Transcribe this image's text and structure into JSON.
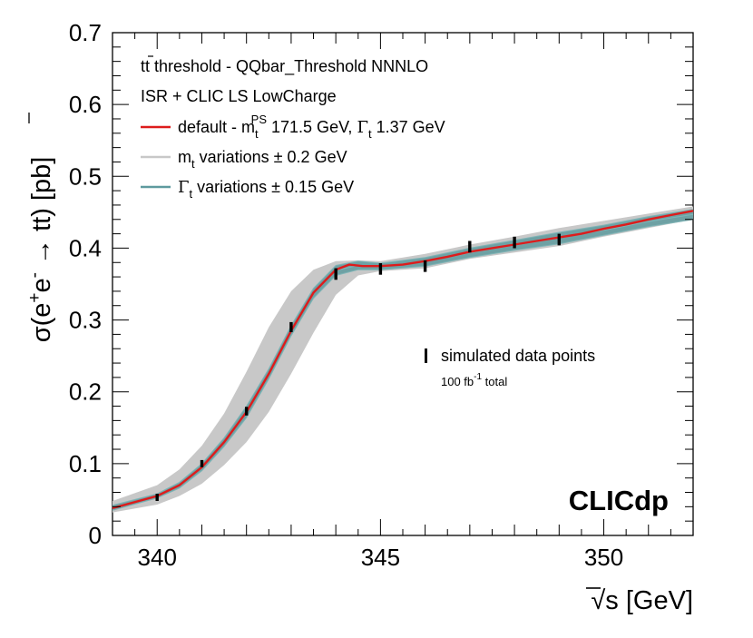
{
  "chart_data": {
    "type": "line",
    "title": "",
    "brand_label": "CLICdp",
    "xlabel": "s [GeV]",
    "xlabel_sqrt": "√",
    "ylabel_parts": {
      "pre": "σ(e",
      "sup1": "+",
      "mid": "e",
      "sup2": "-",
      "arrow": " → ",
      "tt": "tt",
      "post": ") [pb]"
    },
    "xlim": [
      339,
      352
    ],
    "ylim": [
      0,
      0.7
    ],
    "x_ticks": [
      340,
      345,
      350
    ],
    "x_tick_labels": [
      "340",
      "345",
      "350"
    ],
    "y_ticks": [
      0,
      0.1,
      0.2,
      0.3,
      0.4,
      0.5,
      0.6,
      0.7
    ],
    "y_tick_labels": [
      "0",
      "0.1",
      "0.2",
      "0.3",
      "0.4",
      "0.5",
      "0.6",
      "0.7"
    ],
    "legend": {
      "header1": "tt threshold - QQbar_Threshold NNNLO",
      "header2": "ISR + CLIC LS LowCharge",
      "entries": [
        {
          "name": "default",
          "text": "default - m",
          "sub": "t",
          "sup": "PS",
          "rest": " 171.5 GeV, ",
          "greek": "Γ",
          "sub2": "t",
          "rest2": " 1.37 GeV",
          "color": "#dd1c1c"
        },
        {
          "name": "mt-variations",
          "text": "m",
          "sub": "t",
          "rest": " variations ± 0.2 GeV",
          "color": "#c8c8c8"
        },
        {
          "name": "width-variations",
          "greek": "Γ",
          "sub": "t",
          "rest": " variations ± 0.15 GeV",
          "color": "#5e9a9e"
        }
      ]
    },
    "data_legend": {
      "label": "simulated data points",
      "lumi_pre": "100 fb",
      "lumi_sup": "-1",
      "lumi_post": " total"
    },
    "series": [
      {
        "name": "default",
        "color": "#dd1c1c",
        "x": [
          339.0,
          340.0,
          340.5,
          341.0,
          341.5,
          342.0,
          342.5,
          343.0,
          343.5,
          344.0,
          344.3,
          344.6,
          345.0,
          345.5,
          346.0,
          346.5,
          347.0,
          347.5,
          348.0,
          348.5,
          349.0,
          349.5,
          350.0,
          350.5,
          351.0,
          351.5,
          352.0
        ],
        "values": [
          0.038,
          0.055,
          0.07,
          0.095,
          0.13,
          0.172,
          0.225,
          0.285,
          0.338,
          0.37,
          0.377,
          0.375,
          0.375,
          0.377,
          0.382,
          0.388,
          0.395,
          0.4,
          0.405,
          0.41,
          0.415,
          0.42,
          0.427,
          0.433,
          0.44,
          0.446,
          0.452
        ]
      }
    ],
    "mt_band": {
      "color": "#c8c8c8",
      "x": [
        339.0,
        340.0,
        340.5,
        341.0,
        341.5,
        342.0,
        342.5,
        343.0,
        343.5,
        344.0,
        344.5,
        345.0,
        346.0,
        347.0,
        348.0,
        349.0,
        350.0,
        351.0,
        352.0
      ],
      "upper": [
        0.048,
        0.07,
        0.092,
        0.125,
        0.17,
        0.228,
        0.29,
        0.34,
        0.37,
        0.382,
        0.383,
        0.382,
        0.392,
        0.405,
        0.416,
        0.428,
        0.438,
        0.448,
        0.458
      ],
      "lower": [
        0.032,
        0.043,
        0.055,
        0.072,
        0.098,
        0.13,
        0.172,
        0.225,
        0.282,
        0.335,
        0.362,
        0.368,
        0.372,
        0.385,
        0.394,
        0.403,
        0.416,
        0.428,
        0.44
      ]
    },
    "width_band": {
      "color": "#5e9a9e",
      "x": [
        339.0,
        340.0,
        340.5,
        341.0,
        341.5,
        342.0,
        342.5,
        343.0,
        343.5,
        344.0,
        344.5,
        345.0,
        346.0,
        347.0,
        348.0,
        349.0,
        350.0,
        351.0,
        352.0
      ],
      "upper": [
        0.042,
        0.058,
        0.074,
        0.1,
        0.136,
        0.18,
        0.232,
        0.292,
        0.344,
        0.376,
        0.382,
        0.379,
        0.387,
        0.4,
        0.411,
        0.422,
        0.432,
        0.444,
        0.454
      ],
      "lower": [
        0.035,
        0.052,
        0.066,
        0.09,
        0.124,
        0.164,
        0.218,
        0.278,
        0.33,
        0.362,
        0.37,
        0.37,
        0.375,
        0.387,
        0.397,
        0.406,
        0.418,
        0.43,
        0.44
      ]
    },
    "data_points": {
      "x": [
        340,
        341,
        342,
        343,
        344,
        345,
        346,
        347,
        348,
        349
      ],
      "y": [
        0.053,
        0.1,
        0.173,
        0.29,
        0.364,
        0.371,
        0.375,
        0.402,
        0.408,
        0.412
      ],
      "err": [
        0.005,
        0.005,
        0.006,
        0.007,
        0.008,
        0.008,
        0.008,
        0.008,
        0.008,
        0.008
      ]
    }
  }
}
